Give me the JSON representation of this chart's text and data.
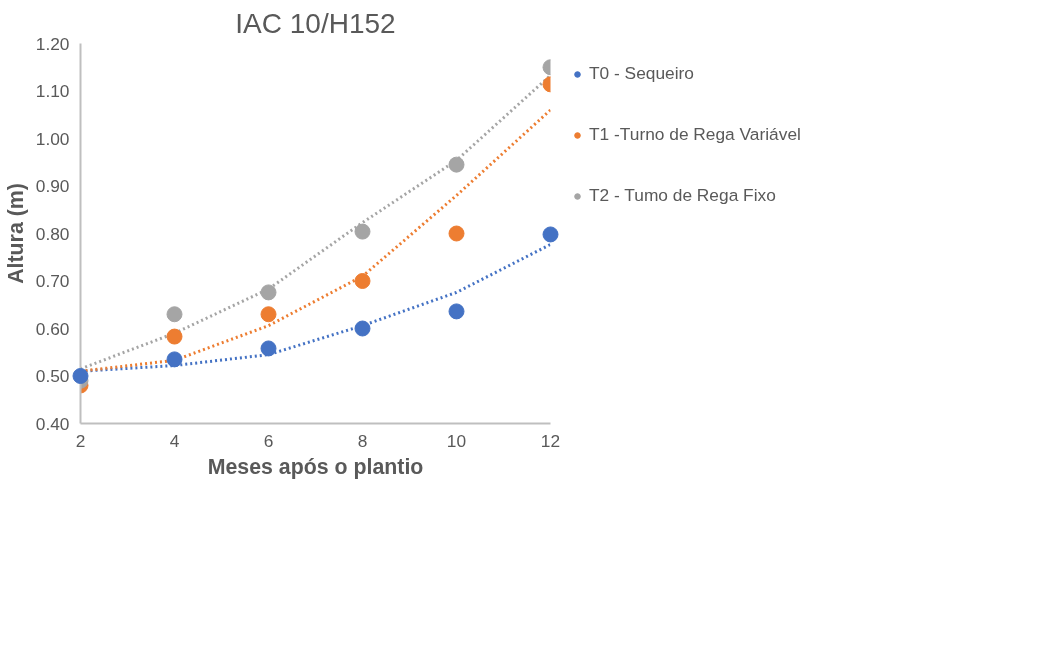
{
  "chart_data": {
    "type": "scatter",
    "title": "IAC 10/H152",
    "xlabel": "Meses após o plantio",
    "ylabel": "Altura (m)",
    "xlim": [
      2,
      12
    ],
    "xticks": [
      2,
      4,
      6,
      8,
      10,
      12
    ],
    "ylim": [
      0.4,
      1.2
    ],
    "yticks": [
      {
        "value": 0.4,
        "label": "0.40"
      },
      {
        "value": 0.5,
        "label": "0.50"
      },
      {
        "value": 0.6,
        "label": "0.60"
      },
      {
        "value": 0.7,
        "label": "0.70"
      },
      {
        "value": 0.8,
        "label": "0.80"
      },
      {
        "value": 0.9,
        "label": "0.90"
      },
      {
        "value": 1.0,
        "label": "1.00"
      },
      {
        "value": 1.1,
        "label": "1.10"
      },
      {
        "value": 1.2,
        "label": "1.20"
      }
    ],
    "grid": false,
    "legend": "right",
    "marker": "circle",
    "x": [
      2,
      4,
      6,
      8,
      10,
      12
    ],
    "series": [
      {
        "name": "T0 - Sequeiro",
        "color": "#4472c4",
        "values": [
          0.5,
          0.535,
          0.558,
          0.6,
          0.636,
          0.798
        ]
      },
      {
        "name": "T1 -Turno de Rega Variável",
        "color": "#ed7d31",
        "values": [
          0.48,
          0.583,
          0.63,
          0.7,
          0.8,
          1.114
        ]
      },
      {
        "name": "T2 - Tumo de Rega Fixo",
        "color": "#a5a5a5",
        "values": [
          0.49,
          0.63,
          0.676,
          0.804,
          0.945,
          1.15
        ]
      },
      {
        "type": "line",
        "line_style": "dotted",
        "marker": "none",
        "color": "#4472c4",
        "x": [
          2,
          4,
          6,
          8,
          10,
          12
        ],
        "values": [
          0.51,
          0.522,
          0.545,
          0.606,
          0.676,
          0.777
        ]
      },
      {
        "type": "line",
        "line_style": "dotted",
        "marker": "none",
        "color": "#ed7d31",
        "x": [
          2,
          4,
          6,
          8,
          10,
          12
        ],
        "values": [
          0.51,
          0.533,
          0.606,
          0.71,
          0.88,
          1.06
        ]
      },
      {
        "type": "line",
        "line_style": "dotted",
        "marker": "none",
        "color": "#a5a5a5",
        "x": [
          2,
          4,
          6,
          8,
          10,
          12
        ],
        "values": [
          0.515,
          0.59,
          0.683,
          0.823,
          0.954,
          1.133
        ]
      }
    ]
  }
}
